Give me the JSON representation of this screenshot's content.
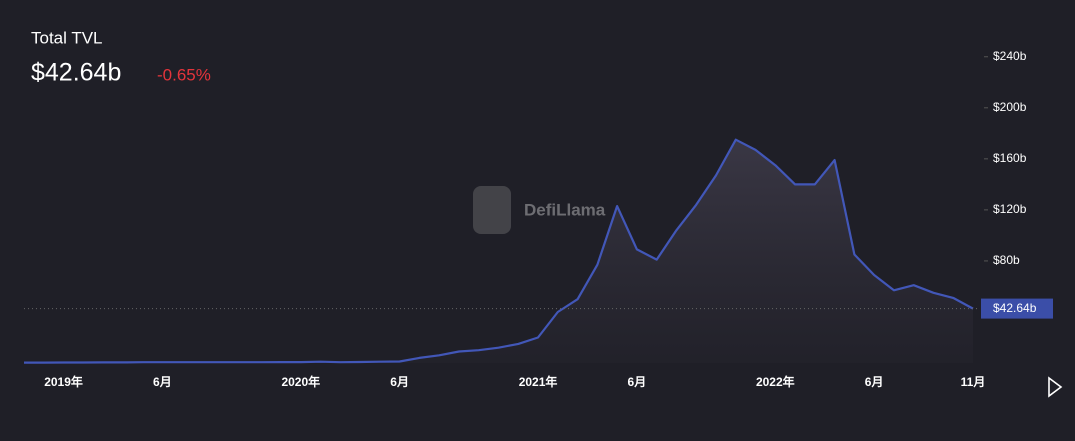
{
  "chart_data": {
    "type": "area",
    "title": "Total TVL",
    "headline": "$42.64b",
    "change": "-0.65%",
    "watermark": "DefiLlama",
    "color": "#4257b8",
    "change_color": "#e3343b",
    "grid": false,
    "x": [
      "2018-11",
      "2018-12",
      "2019-01",
      "2019-02",
      "2019-03",
      "2019-04",
      "2019-05",
      "2019-06",
      "2019-07",
      "2019-08",
      "2019-09",
      "2019-10",
      "2019-11",
      "2019-12",
      "2020-01",
      "2020-02",
      "2020-03",
      "2020-04",
      "2020-05",
      "2020-06",
      "2020-07",
      "2020-08",
      "2020-09",
      "2020-10",
      "2020-11",
      "2020-12",
      "2021-01",
      "2021-02",
      "2021-03",
      "2021-04",
      "2021-05",
      "2021-06",
      "2021-07",
      "2021-08",
      "2021-09",
      "2021-10",
      "2021-11",
      "2021-12",
      "2022-01",
      "2022-02",
      "2022-03",
      "2022-04",
      "2022-05",
      "2022-06",
      "2022-07",
      "2022-08",
      "2022-09",
      "2022-10",
      "2022-11"
    ],
    "values": [
      0.3,
      0.3,
      0.4,
      0.4,
      0.5,
      0.5,
      0.6,
      0.6,
      0.6,
      0.6,
      0.6,
      0.6,
      0.6,
      0.7,
      0.7,
      1,
      0.6,
      0.8,
      1,
      1.2,
      4,
      6,
      9,
      10,
      12,
      15,
      20,
      40,
      50,
      77,
      123,
      89,
      81,
      104,
      124,
      147,
      175,
      167,
      155,
      140,
      140,
      159,
      85,
      69,
      57,
      61,
      55,
      51,
      42.64
    ],
    "last_value": {
      "value": 42.64,
      "label": "$42.64b"
    },
    "xlim": [
      "2018-11",
      "2022-11"
    ],
    "xticks": [
      {
        "value": "2019-01",
        "label": "2019年"
      },
      {
        "value": "2019-06",
        "label": "6月"
      },
      {
        "value": "2020-01",
        "label": "2020年"
      },
      {
        "value": "2020-06",
        "label": "6月"
      },
      {
        "value": "2021-01",
        "label": "2021年"
      },
      {
        "value": "2021-06",
        "label": "6月"
      },
      {
        "value": "2022-01",
        "label": "2022年"
      },
      {
        "value": "2022-06",
        "label": "6月"
      },
      {
        "value": "2022-11",
        "label": "11月"
      }
    ],
    "ylim": [
      0,
      250
    ],
    "yticks": [
      {
        "value": 80,
        "label": "$80b"
      },
      {
        "value": 120,
        "label": "$120b"
      },
      {
        "value": 160,
        "label": "$160b"
      },
      {
        "value": 200,
        "label": "$200b"
      },
      {
        "value": 240,
        "label": "$240b"
      }
    ]
  }
}
